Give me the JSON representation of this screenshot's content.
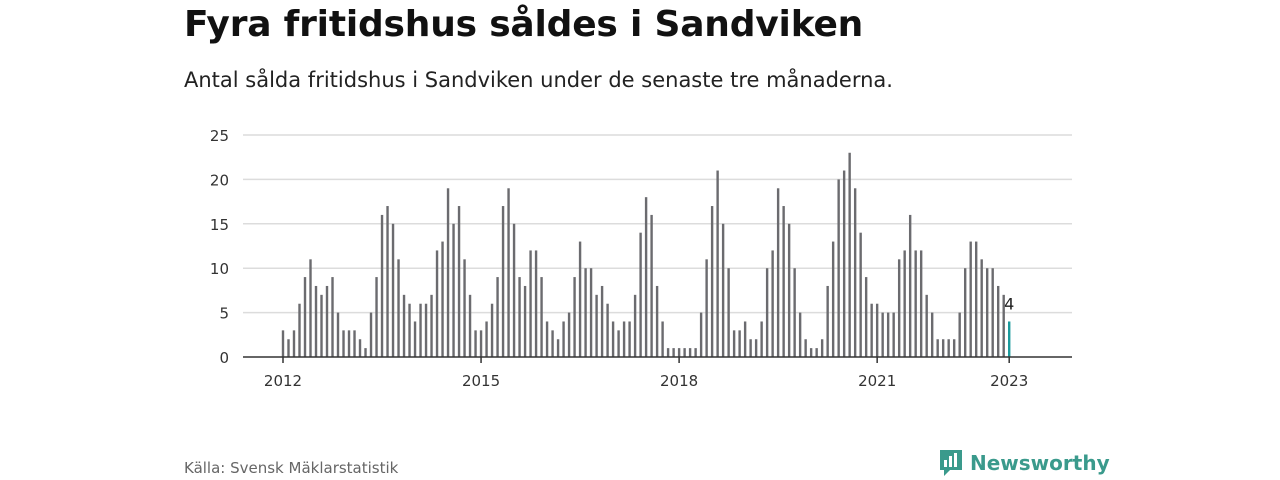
{
  "title": "Fyra fritidshus såldes i Sandviken",
  "subtitle": "Antal sålda fritidshus i Sandviken under de senaste tre månaderna.",
  "source": "Källa: Svensk Mäklarstatistik",
  "brand": "Newsworthy",
  "colors": {
    "bar": "#6b6b6f",
    "highlight": "#1a9a9c",
    "grid": "#dcdcdc",
    "axis": "#333333",
    "brand": "#3a9a8c"
  },
  "chart_data": {
    "type": "bar",
    "title": "Fyra fritidshus såldes i Sandviken",
    "subtitle": "Antal sålda fritidshus i Sandviken under de senaste tre månaderna.",
    "xlabel": "",
    "ylabel": "",
    "ylim": [
      0,
      25
    ],
    "yticks": [
      0,
      5,
      10,
      15,
      20,
      25
    ],
    "grid": true,
    "x_start": "2012-01",
    "x_end": "2023-01",
    "xticks": [
      "2012",
      "2015",
      "2018",
      "2021",
      "2023"
    ],
    "values": [
      3,
      2,
      3,
      6,
      9,
      11,
      8,
      7,
      8,
      9,
      5,
      3,
      3,
      3,
      2,
      1,
      5,
      9,
      16,
      17,
      15,
      11,
      7,
      6,
      4,
      6,
      6,
      7,
      12,
      13,
      19,
      15,
      17,
      11,
      7,
      3,
      3,
      4,
      6,
      9,
      17,
      19,
      15,
      9,
      8,
      12,
      12,
      9,
      4,
      3,
      2,
      4,
      5,
      9,
      13,
      10,
      10,
      7,
      8,
      6,
      4,
      3,
      4,
      4,
      7,
      14,
      18,
      16,
      8,
      4,
      1,
      1,
      1,
      1,
      1,
      1,
      5,
      11,
      17,
      21,
      15,
      10,
      3,
      3,
      4,
      2,
      2,
      4,
      10,
      12,
      19,
      17,
      15,
      10,
      5,
      2,
      1,
      1,
      2,
      8,
      13,
      20,
      21,
      23,
      19,
      14,
      9,
      6,
      6,
      5,
      5,
      5,
      11,
      12,
      16,
      12,
      12,
      7,
      5,
      2,
      2,
      2,
      2,
      5,
      10,
      13,
      13,
      11,
      10,
      10,
      8,
      7,
      4
    ],
    "highlight_last": true,
    "annotation": "4"
  }
}
